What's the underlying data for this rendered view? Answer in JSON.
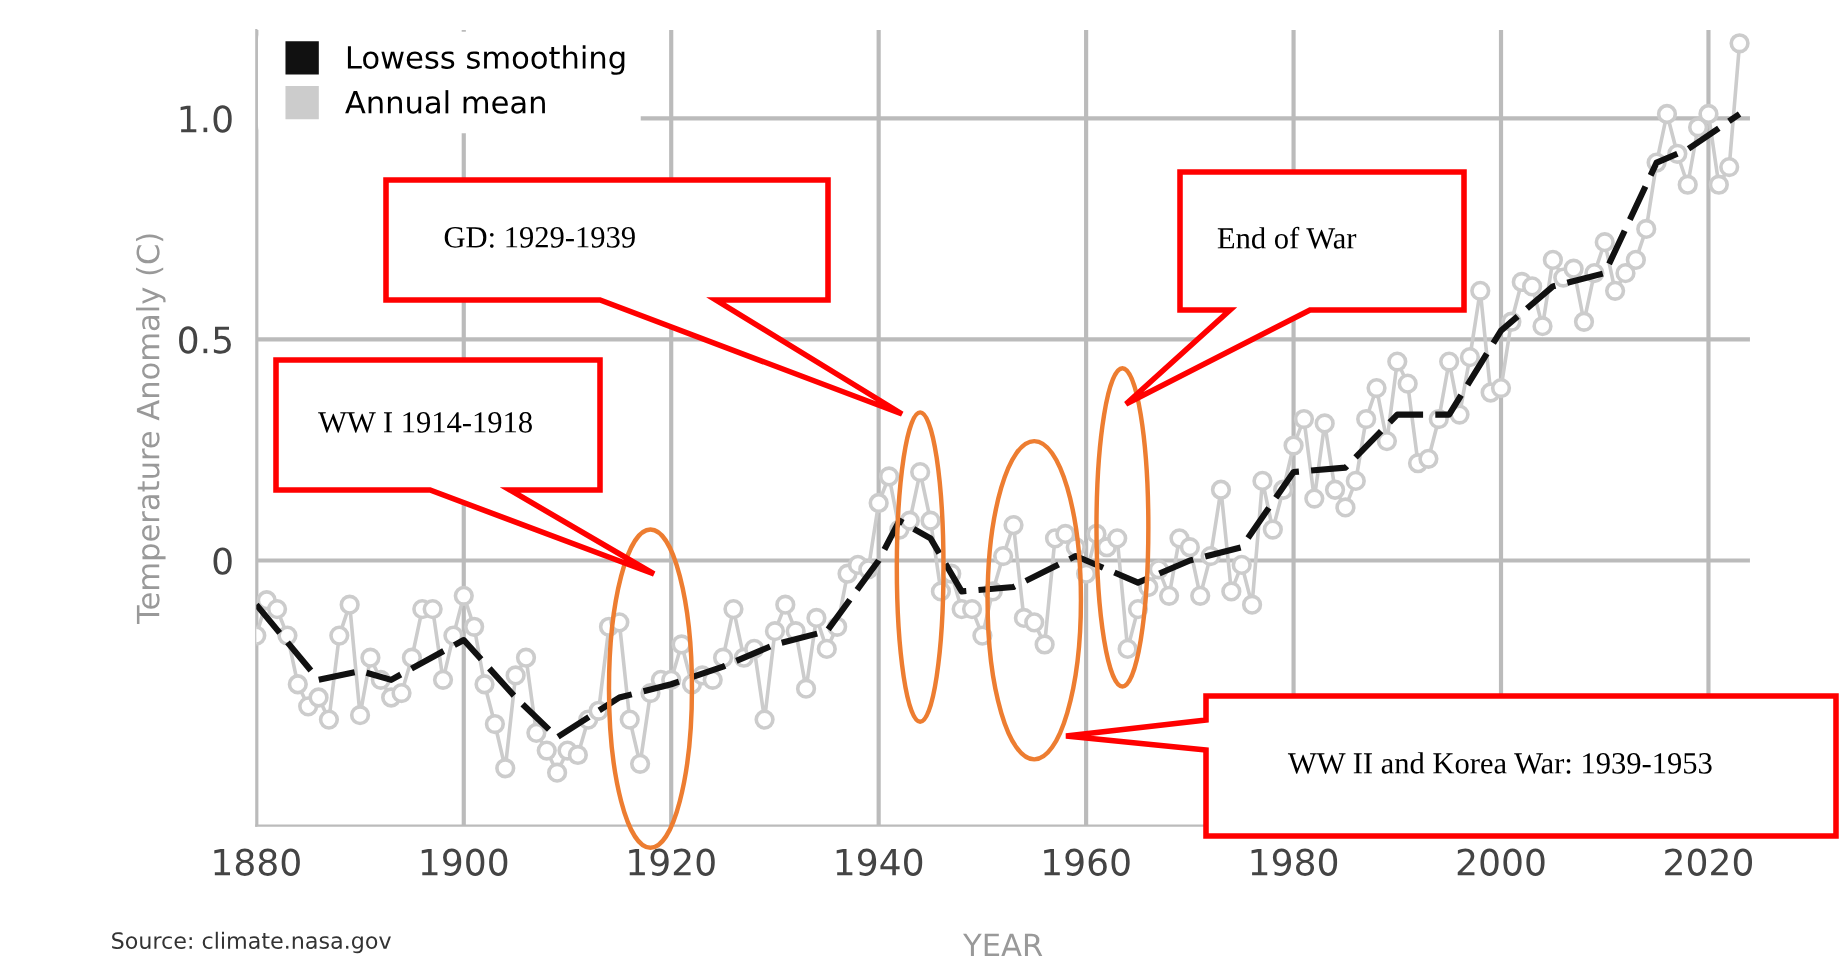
{
  "chart_data": {
    "type": "line",
    "xlabel": "YEAR",
    "ylabel": "Temperature Anomaly (C)",
    "xlim": [
      1880,
      2024
    ],
    "ylim": [
      -0.6,
      1.2
    ],
    "xticks": [
      1880,
      1900,
      1920,
      1940,
      1960,
      1980,
      2000,
      2020
    ],
    "yticks": [
      {
        "value": 0,
        "label": "0"
      },
      {
        "value": 0.5,
        "label": "0.5"
      },
      {
        "value": 1.0,
        "label": "1.0"
      }
    ],
    "grid": true,
    "legend": "top left",
    "series": [
      {
        "name": "Lowess smoothing",
        "color": "#111111",
        "marker": "none",
        "line_style": "dashed",
        "x": [
          1880,
          1886,
          1890,
          1893,
          1900,
          1905,
          1909,
          1915,
          1920,
          1925,
          1930,
          1935,
          1940,
          1942,
          1945,
          1948,
          1953,
          1959,
          1965,
          1970,
          1975,
          1980,
          1985,
          1990,
          1995,
          2000,
          2005,
          2010,
          2015,
          2018,
          2023
        ],
        "values": [
          -0.1,
          -0.27,
          -0.25,
          -0.27,
          -0.18,
          -0.31,
          -0.4,
          -0.31,
          -0.28,
          -0.24,
          -0.19,
          -0.16,
          0.0,
          0.09,
          0.05,
          -0.07,
          -0.06,
          0.01,
          -0.05,
          0.0,
          0.03,
          0.2,
          0.21,
          0.33,
          0.33,
          0.52,
          0.62,
          0.65,
          0.9,
          0.93,
          1.01
        ]
      },
      {
        "name": "Annual mean",
        "color": "#cccccc",
        "marker": "circle",
        "line_style": "solid",
        "x": [
          1880,
          1881,
          1882,
          1883,
          1884,
          1885,
          1886,
          1887,
          1888,
          1889,
          1890,
          1891,
          1892,
          1893,
          1894,
          1895,
          1896,
          1897,
          1898,
          1899,
          1900,
          1901,
          1902,
          1903,
          1904,
          1905,
          1906,
          1907,
          1908,
          1909,
          1910,
          1911,
          1912,
          1913,
          1914,
          1915,
          1916,
          1917,
          1918,
          1919,
          1920,
          1921,
          1922,
          1923,
          1924,
          1925,
          1926,
          1927,
          1928,
          1929,
          1930,
          1931,
          1932,
          1933,
          1934,
          1935,
          1936,
          1937,
          1938,
          1939,
          1940,
          1941,
          1942,
          1943,
          1944,
          1945,
          1946,
          1947,
          1948,
          1949,
          1950,
          1951,
          1952,
          1953,
          1954,
          1955,
          1956,
          1957,
          1958,
          1959,
          1960,
          1961,
          1962,
          1963,
          1964,
          1965,
          1966,
          1967,
          1968,
          1969,
          1970,
          1971,
          1972,
          1973,
          1974,
          1975,
          1976,
          1977,
          1978,
          1979,
          1980,
          1981,
          1982,
          1983,
          1984,
          1985,
          1986,
          1987,
          1988,
          1989,
          1990,
          1991,
          1992,
          1993,
          1994,
          1995,
          1996,
          1997,
          1998,
          1999,
          2000,
          2001,
          2002,
          2003,
          2004,
          2005,
          2006,
          2007,
          2008,
          2009,
          2010,
          2011,
          2012,
          2013,
          2014,
          2015,
          2016,
          2017,
          2018,
          2019,
          2020,
          2021,
          2022,
          2023
        ],
        "values": [
          -0.17,
          -0.09,
          -0.11,
          -0.17,
          -0.28,
          -0.33,
          -0.31,
          -0.36,
          -0.17,
          -0.1,
          -0.35,
          -0.22,
          -0.27,
          -0.31,
          -0.3,
          -0.22,
          -0.11,
          -0.11,
          -0.27,
          -0.17,
          -0.08,
          -0.15,
          -0.28,
          -0.37,
          -0.47,
          -0.26,
          -0.22,
          -0.39,
          -0.43,
          -0.48,
          -0.43,
          -0.44,
          -0.36,
          -0.34,
          -0.15,
          -0.14,
          -0.36,
          -0.46,
          -0.3,
          -0.27,
          -0.27,
          -0.19,
          -0.28,
          -0.26,
          -0.27,
          -0.22,
          -0.11,
          -0.22,
          -0.2,
          -0.36,
          -0.16,
          -0.1,
          -0.16,
          -0.29,
          -0.13,
          -0.2,
          -0.15,
          -0.03,
          -0.01,
          -0.02,
          0.13,
          0.19,
          0.07,
          0.09,
          0.2,
          0.09,
          -0.07,
          -0.03,
          -0.11,
          -0.11,
          -0.17,
          -0.07,
          0.01,
          0.08,
          -0.13,
          -0.14,
          -0.19,
          0.05,
          0.06,
          0.03,
          -0.03,
          0.06,
          0.03,
          0.05,
          -0.2,
          -0.11,
          -0.06,
          -0.02,
          -0.08,
          0.05,
          0.03,
          -0.08,
          0.01,
          0.16,
          -0.07,
          -0.01,
          -0.1,
          0.18,
          0.07,
          0.16,
          0.26,
          0.32,
          0.14,
          0.31,
          0.16,
          0.12,
          0.18,
          0.32,
          0.39,
          0.27,
          0.45,
          0.4,
          0.22,
          0.23,
          0.32,
          0.45,
          0.33,
          0.46,
          0.61,
          0.38,
          0.39,
          0.54,
          0.63,
          0.62,
          0.53,
          0.68,
          0.64,
          0.66,
          0.54,
          0.65,
          0.72,
          0.61,
          0.65,
          0.68,
          0.75,
          0.9,
          1.01,
          0.92,
          0.85,
          0.98,
          1.01,
          0.85,
          0.89,
          1.17
        ]
      }
    ],
    "annotations": [
      "WW I 1914-1918",
      "GD: 1929-1939",
      "End of War",
      "WW II and Korea War: 1939-1953",
      "Source: climate.nasa.gov"
    ]
  }
}
